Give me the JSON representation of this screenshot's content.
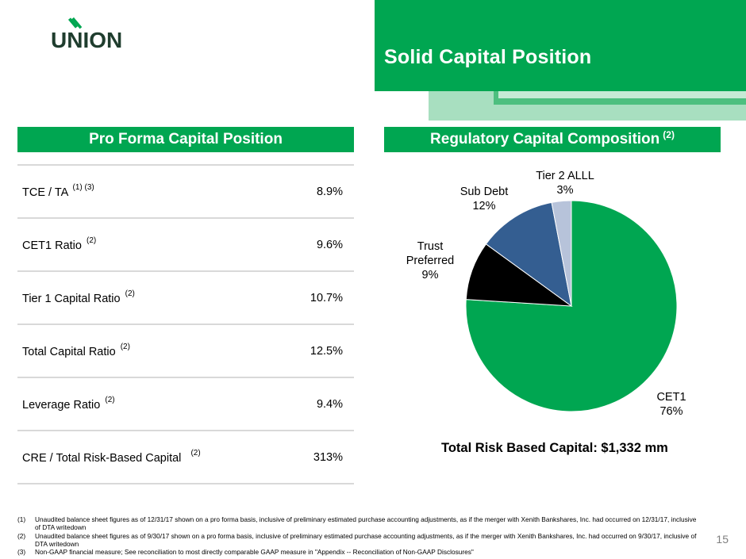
{
  "logo": {
    "text": "UNION"
  },
  "title": "Solid Capital Position",
  "left_section": {
    "header": "Pro Forma Capital Position",
    "rows": [
      {
        "label": "TCE / TA",
        "note": "(1) (3)",
        "value": "8.9%"
      },
      {
        "label": "CET1 Ratio",
        "note": "(2)",
        "value": "9.6%"
      },
      {
        "label": "Tier 1 Capital Ratio",
        "note": "(2)",
        "value": "10.7%"
      },
      {
        "label": "Total Capital Ratio",
        "note": "(2)",
        "value": "12.5%"
      },
      {
        "label": "Leverage Ratio",
        "note": "(2)",
        "value": "9.4%"
      },
      {
        "label": "CRE / Total Risk-Based Capital",
        "note": "(2)",
        "value": "313%"
      }
    ]
  },
  "right_section": {
    "header": "Regulatory Capital Composition",
    "header_note": "(2)",
    "total_label": "Total Risk Based Capital: $1,332 mm"
  },
  "chart_data": {
    "type": "pie",
    "title": "Regulatory Capital Composition",
    "slices": [
      {
        "name": "CET1",
        "lines": [
          "CET1"
        ],
        "value": 76,
        "label": "76%",
        "color": "#00a651"
      },
      {
        "name": "Trust Preferred",
        "lines": [
          "Trust",
          "Preferred"
        ],
        "value": 9,
        "label": "9%",
        "color": "#000000"
      },
      {
        "name": "Sub Debt",
        "lines": [
          "Sub Debt"
        ],
        "value": 12,
        "label": "12%",
        "color": "#345e91"
      },
      {
        "name": "Tier 2 ALLL",
        "lines": [
          "Tier 2 ALLL"
        ],
        "value": 3,
        "label": "3%",
        "color": "#b7c3da"
      }
    ]
  },
  "footnotes": [
    {
      "num": "(1)",
      "text": "Unaudited balance sheet figures as of 12/31/17 shown on a pro forma basis, inclusive of preliminary estimated purchase accounting adjustments, as if the merger with Xenith Bankshares, Inc. had occurred on 12/31/17, inclusive of DTA writedown"
    },
    {
      "num": "(2)",
      "text": "Unaudited balance sheet figures as of 9/30/17 shown on a pro forma basis, inclusive of preliminary estimated purchase accounting adjustments, as if the merger with Xenith Bankshares, Inc. had occurred on 9/30/17, inclusive of DTA writedown"
    },
    {
      "num": "(3)",
      "text": "Non-GAAP financial measure; See reconciliation to most directly comparable GAAP measure in \"Appendix -- Reconciliation of Non-GAAP Disclosures\""
    }
  ],
  "page_number": "15",
  "colors": {
    "brand_green": "#00a651",
    "light_green": "#a8dfc0",
    "mid_green": "#4dbf7f"
  }
}
